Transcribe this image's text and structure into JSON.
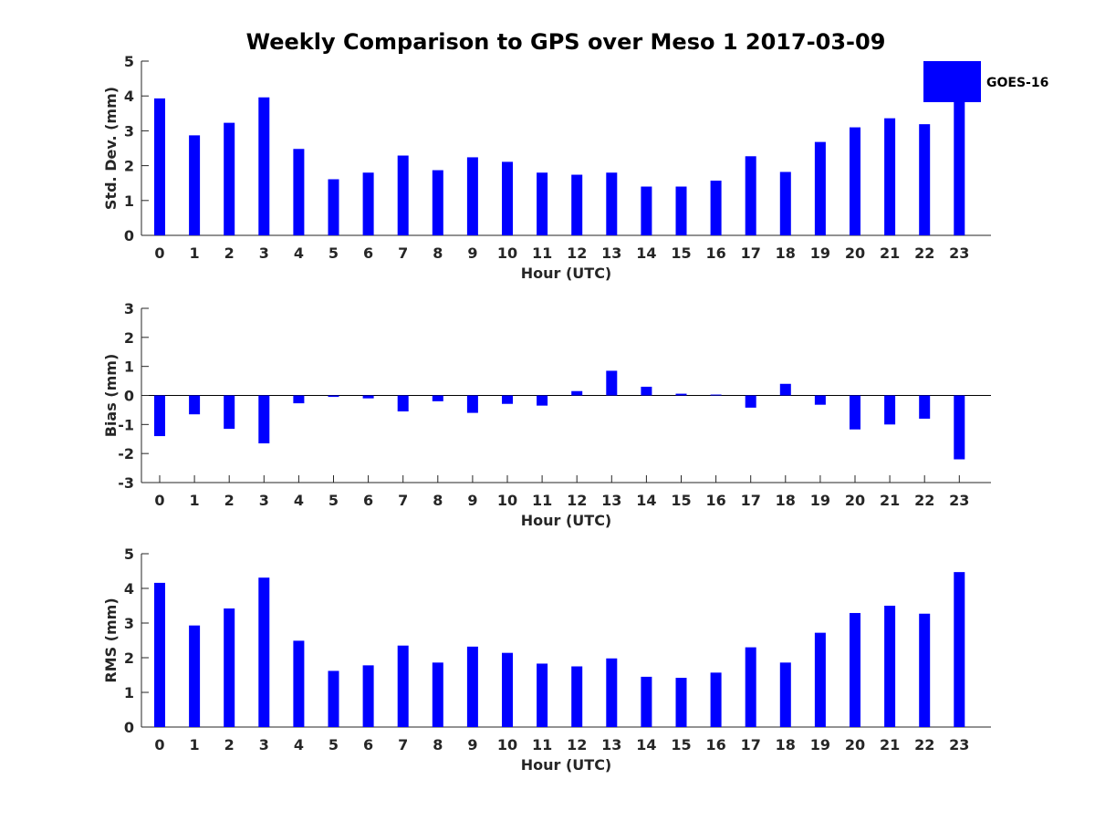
{
  "figure": {
    "title": "Weekly Comparison to GPS over Meso 1 2017-03-09",
    "bar_color": "#0000ff",
    "legend_label": "GOES-16"
  },
  "chart_data": [
    {
      "type": "bar",
      "title": "Weekly Comparison to GPS over Meso 1 2017-03-09",
      "xlabel": "Hour (UTC)",
      "ylabel": "Std. Dev. (mm)",
      "ylim": [
        0,
        5
      ],
      "yticks": [
        0,
        1,
        2,
        3,
        4,
        5
      ],
      "categories": [
        "0",
        "1",
        "2",
        "3",
        "4",
        "5",
        "6",
        "7",
        "8",
        "9",
        "10",
        "11",
        "12",
        "13",
        "14",
        "15",
        "16",
        "17",
        "18",
        "19",
        "20",
        "21",
        "22",
        "23"
      ],
      "series": [
        {
          "name": "GOES-16",
          "values": [
            3.93,
            2.87,
            3.23,
            3.96,
            2.48,
            1.61,
            1.8,
            2.29,
            1.87,
            2.24,
            2.11,
            1.8,
            1.74,
            1.8,
            1.4,
            1.4,
            1.57,
            2.27,
            1.82,
            2.68,
            3.1,
            3.36,
            3.19,
            3.88
          ]
        }
      ],
      "legend": "top-right"
    },
    {
      "type": "bar",
      "xlabel": "Hour (UTC)",
      "ylabel": "Bias (mm)",
      "ylim": [
        -3,
        3
      ],
      "yticks": [
        -3,
        -2,
        -1,
        0,
        1,
        2,
        3
      ],
      "categories": [
        "0",
        "1",
        "2",
        "3",
        "4",
        "5",
        "6",
        "7",
        "8",
        "9",
        "10",
        "11",
        "12",
        "13",
        "14",
        "15",
        "16",
        "17",
        "18",
        "19",
        "20",
        "21",
        "22",
        "23"
      ],
      "series": [
        {
          "name": "GOES-16",
          "values": [
            -1.4,
            -0.65,
            -1.15,
            -1.65,
            -0.27,
            -0.05,
            -0.1,
            -0.55,
            -0.2,
            -0.6,
            -0.29,
            -0.35,
            0.15,
            0.85,
            0.3,
            0.06,
            0.03,
            -0.42,
            0.4,
            -0.32,
            -1.17,
            -1.0,
            -0.8,
            -2.2
          ]
        }
      ]
    },
    {
      "type": "bar",
      "xlabel": "Hour (UTC)",
      "ylabel": "RMS (mm)",
      "ylim": [
        0,
        5
      ],
      "yticks": [
        0,
        1,
        2,
        3,
        4,
        5
      ],
      "categories": [
        "0",
        "1",
        "2",
        "3",
        "4",
        "5",
        "6",
        "7",
        "8",
        "9",
        "10",
        "11",
        "12",
        "13",
        "14",
        "15",
        "16",
        "17",
        "18",
        "19",
        "20",
        "21",
        "22",
        "23"
      ],
      "series": [
        {
          "name": "GOES-16",
          "values": [
            4.16,
            2.93,
            3.42,
            4.31,
            2.49,
            1.62,
            1.78,
            2.35,
            1.86,
            2.32,
            2.14,
            1.83,
            1.75,
            1.98,
            1.45,
            1.42,
            1.57,
            2.3,
            1.86,
            2.72,
            3.29,
            3.5,
            3.27,
            4.47
          ]
        }
      ]
    }
  ]
}
